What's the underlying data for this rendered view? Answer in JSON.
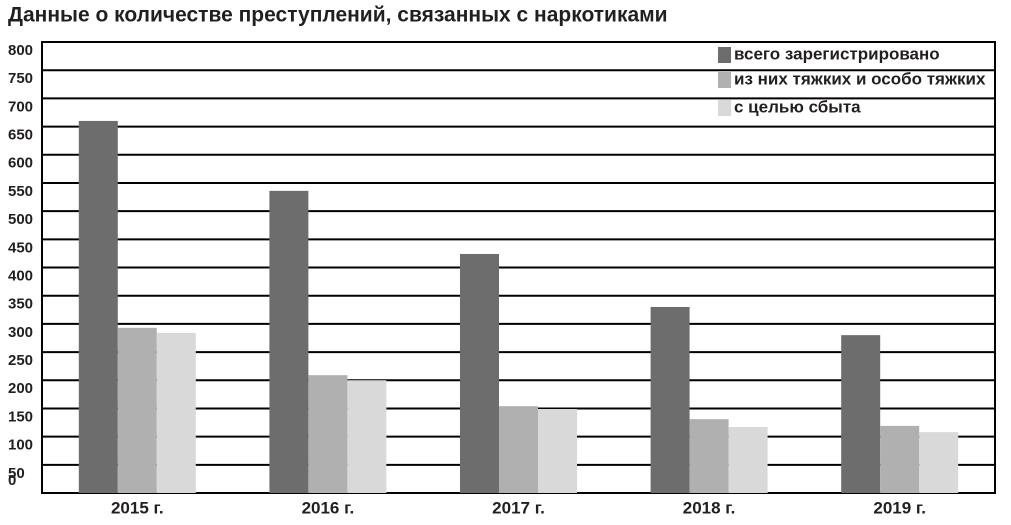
{
  "chart_data": {
    "type": "bar",
    "title": "Данные о количестве преступлений, связанных с наркотиками",
    "categories": [
      "2015 г.",
      "2016 г.",
      "2017 г.",
      "2018 г.",
      "2019 г."
    ],
    "series": [
      {
        "name": "всего зарегистрировано",
        "color": "#6d6d6d",
        "values": [
          660,
          536,
          424,
          330,
          280
        ]
      },
      {
        "name": "из них тяжких и особо тяжких",
        "color": "#b0b0b0",
        "values": [
          293,
          209,
          154,
          131,
          119
        ]
      },
      {
        "name": "с целью сбыта",
        "color": "#d9d9d9",
        "values": [
          284,
          200,
          149,
          117,
          108
        ]
      }
    ],
    "ylim": [
      0,
      800
    ],
    "yticks": [
      0,
      50,
      100,
      150,
      200,
      250,
      300,
      350,
      400,
      450,
      500,
      550,
      600,
      650,
      700,
      750,
      800
    ],
    "grid": true,
    "legend": "top-right"
  }
}
